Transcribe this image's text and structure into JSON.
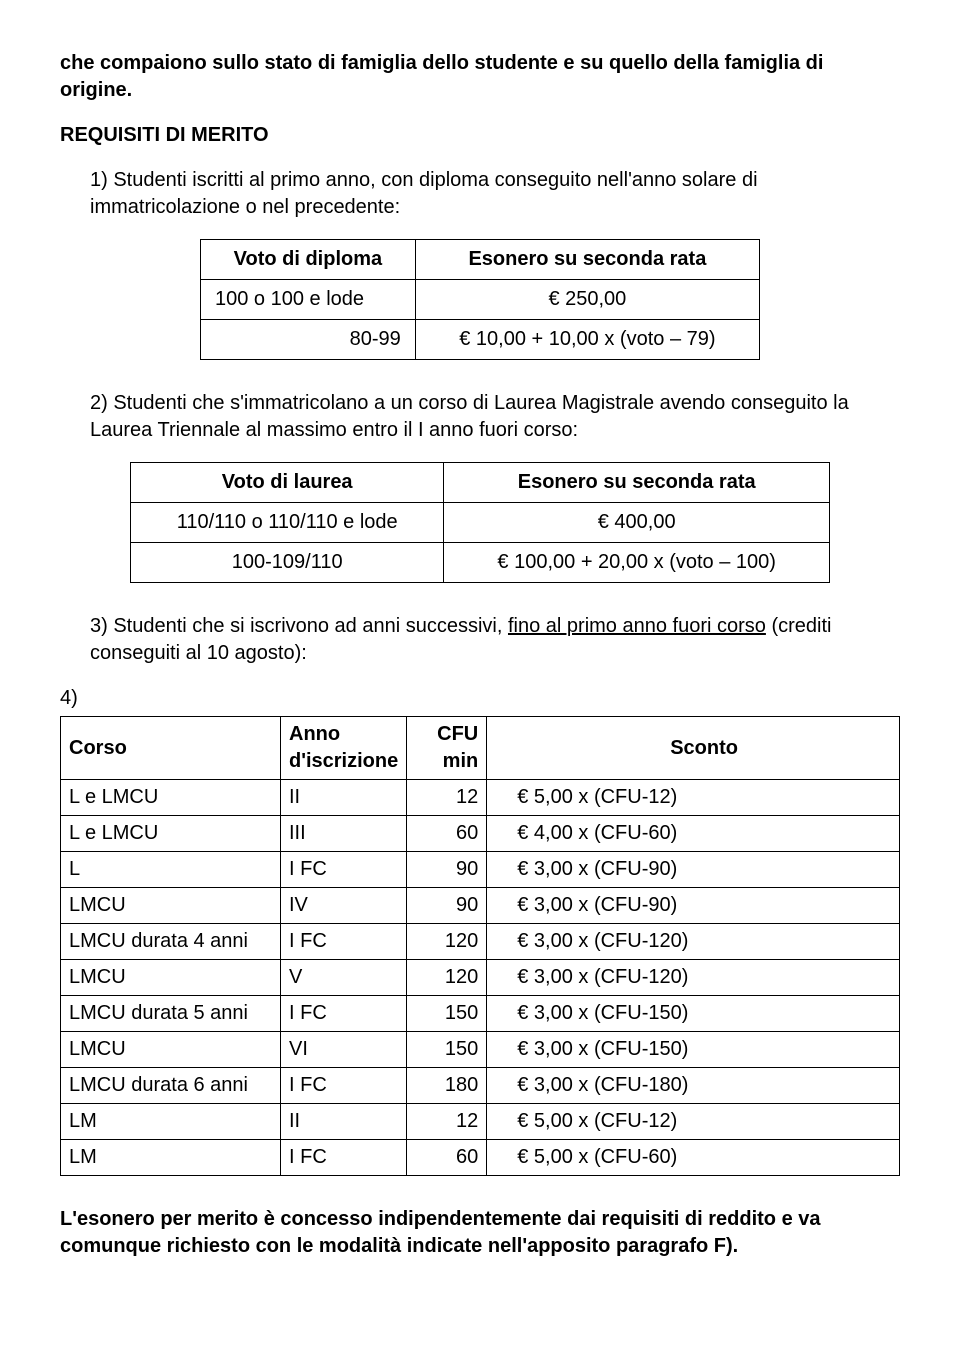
{
  "intro": {
    "para1": "che compaiono sullo stato di famiglia dello studente e su quello della famiglia di origine.",
    "heading": "REQUISITI DI MERITO",
    "item1": "1) Studenti iscritti al primo anno, con diploma conseguito nell'anno solare di immatricolazione o nel precedente:"
  },
  "table1": {
    "head_left": "Voto di diploma",
    "head_right": "Esonero su seconda rata",
    "rows": [
      {
        "left": "100 o 100 e lode",
        "right": "€ 250,00"
      },
      {
        "left": "80-99",
        "right": "€ 10,00 + 10,00 x (voto – 79)"
      }
    ]
  },
  "item2": "2) Studenti che s'immatricolano a un corso di Laurea Magistrale avendo conseguito la Laurea Triennale al massimo entro il I anno fuori corso:",
  "table2": {
    "head_left": "Voto di laurea",
    "head_right": "Esonero su seconda rata",
    "rows": [
      {
        "left": "110/110 o 110/110 e lode",
        "right": "€ 400,00"
      },
      {
        "left": "100-109/110",
        "right": "€ 100,00 + 20,00 x (voto – 100)"
      }
    ]
  },
  "item3_pre": "3) Studenti che si iscrivono ad anni successivi, ",
  "item3_under": "fino al primo anno fuori corso",
  "item3_post": " (crediti conseguiti al 10 agosto):",
  "item4": "4)",
  "table4": {
    "head": {
      "corso": "Corso",
      "anno": "Anno d'iscrizione",
      "cfu": "CFU min",
      "sconto": "Sconto"
    },
    "rows": [
      {
        "corso": "L e LMCU",
        "anno": "II",
        "cfu": "12",
        "sconto": "€ 5,00 x (CFU-12)"
      },
      {
        "corso": "L e LMCU",
        "anno": "III",
        "cfu": "60",
        "sconto": "€ 4,00 x (CFU-60)"
      },
      {
        "corso": "L",
        "anno": "I FC",
        "cfu": "90",
        "sconto": "€ 3,00 x (CFU-90)"
      },
      {
        "corso": "LMCU",
        "anno": "IV",
        "cfu": "90",
        "sconto": "€ 3,00 x (CFU-90)"
      },
      {
        "corso": "LMCU durata 4 anni",
        "anno": "I FC",
        "cfu": "120",
        "sconto": "€ 3,00 x (CFU-120)"
      },
      {
        "corso": "LMCU",
        "anno": "V",
        "cfu": "120",
        "sconto": "€ 3,00 x (CFU-120)"
      },
      {
        "corso": "LMCU durata 5 anni",
        "anno": "I FC",
        "cfu": "150",
        "sconto": "€ 3,00 x (CFU-150)"
      },
      {
        "corso": "LMCU",
        "anno": "VI",
        "cfu": "150",
        "sconto": "€ 3,00 x (CFU-150)"
      },
      {
        "corso": "LMCU durata 6 anni",
        "anno": "I FC",
        "cfu": "180",
        "sconto": "€ 3,00 x (CFU-180)"
      },
      {
        "corso": "LM",
        "anno": "II",
        "cfu": "12",
        "sconto": "€ 5,00 x (CFU-12)"
      },
      {
        "corso": "LM",
        "anno": "I FC",
        "cfu": "60",
        "sconto": "€ 5,00 x (CFU-60)"
      }
    ]
  },
  "final": "L'esonero per merito è concesso indipendentemente dai requisiti di reddito e va comunque richiesto con le modalità indicate nell'apposito paragrafo F)."
}
